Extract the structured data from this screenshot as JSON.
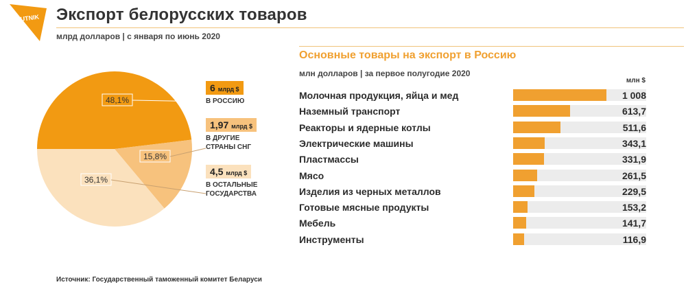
{
  "header": {
    "logo_text": "SPUTNIK",
    "title": "Экспорт белорусских товаров",
    "subtitle": "млрд долларов  |  с января по июнь 2020"
  },
  "colors": {
    "dark": "#f29a12",
    "mid": "#f7c27d",
    "light": "#fbe1bd",
    "bar": "#f0a030",
    "track": "#ececec"
  },
  "chart_data": [
    {
      "type": "pie",
      "slices": [
        {
          "percent": 48.1,
          "label": "48,1%",
          "value_number": "6",
          "value_unit": "млрд $",
          "name": "В РОССИЮ",
          "color": "#f29a12"
        },
        {
          "percent": 15.8,
          "label": "15,8%",
          "value_number": "1,97",
          "value_unit": "млрд $",
          "name": "В ДРУГИЕ\nСТРАНЫ СНГ",
          "color": "#f7c27d"
        },
        {
          "percent": 36.1,
          "label": "36,1%",
          "value_number": "4,5",
          "value_unit": "млрд $",
          "name": "В ОСТАЛЬНЫЕ\nГОСУДАРСТВА",
          "color": "#fbe1bd"
        }
      ]
    },
    {
      "type": "bar",
      "orientation": "horizontal",
      "title": "Основные товары на экспорт в Россию",
      "subtitle": "млн долларов  |  за первое полугодие 2020",
      "unit": "млн $",
      "categories": [
        "Молочная продукция, яйца и мед",
        "Наземный транспорт",
        "Реакторы и ядерные котлы",
        "Электрические машины",
        "Пластмассы",
        "Мясо",
        "Изделия из черных металлов",
        "Готовые мясные продукты",
        "Мебель",
        "Инструменты"
      ],
      "values": [
        1008,
        613.7,
        511.6,
        343.1,
        331.9,
        261.5,
        229.5,
        153.2,
        141.7,
        116.9
      ],
      "value_labels": [
        "1 008",
        "613,7",
        "511,6",
        "343,1",
        "331,9",
        "261,5",
        "229,5",
        "153,2",
        "141,7",
        "116,9"
      ]
    }
  ],
  "footer": {
    "source": "Источник: Государственный таможенный комитет Беларуси"
  }
}
